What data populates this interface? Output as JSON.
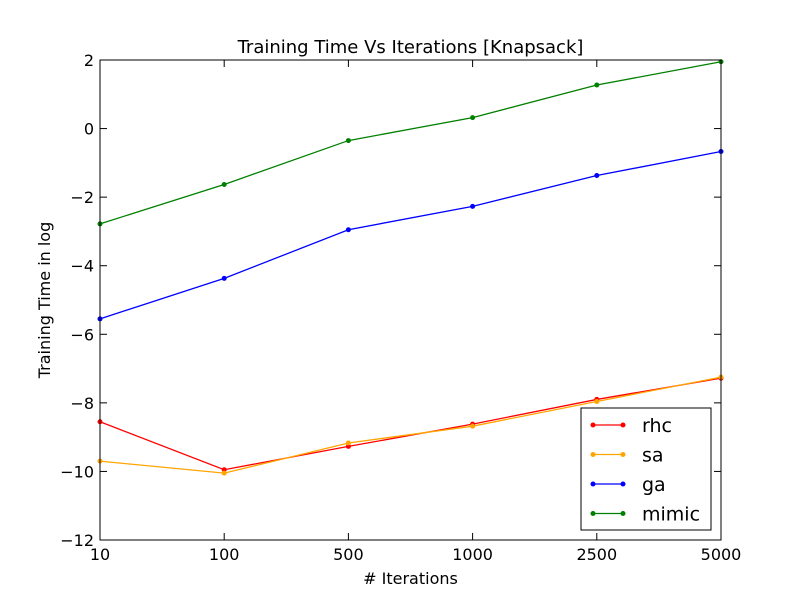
{
  "chart_data": {
    "type": "line",
    "title": "Training Time Vs Iterations [Knapsack]",
    "xlabel": "# Iterations",
    "ylabel": "Training Time in log",
    "categories": [
      "10",
      "100",
      "500",
      "1000",
      "2500",
      "5000"
    ],
    "ylim": [
      -12,
      2
    ],
    "yticks": [
      2,
      0,
      -2,
      -4,
      -6,
      -8,
      -10,
      -12
    ],
    "ytick_labels": [
      "2",
      "0",
      "−2",
      "−4",
      "−6",
      "−8",
      "−10",
      "−12"
    ],
    "grid": false,
    "legend_position": "lower-right",
    "series": [
      {
        "name": "rhc",
        "color": "#ff0000",
        "values": [
          -8.55,
          -9.95,
          -9.27,
          -8.62,
          -7.9,
          -7.28
        ]
      },
      {
        "name": "sa",
        "color": "#ffa500",
        "values": [
          -9.7,
          -10.05,
          -9.17,
          -8.68,
          -7.96,
          -7.25
        ]
      },
      {
        "name": "ga",
        "color": "#0000ff",
        "values": [
          -5.55,
          -4.37,
          -2.95,
          -2.27,
          -1.37,
          -0.67
        ]
      },
      {
        "name": "mimic",
        "color": "#008000",
        "values": [
          -2.78,
          -1.63,
          -0.35,
          0.32,
          1.27,
          1.95
        ]
      }
    ]
  }
}
